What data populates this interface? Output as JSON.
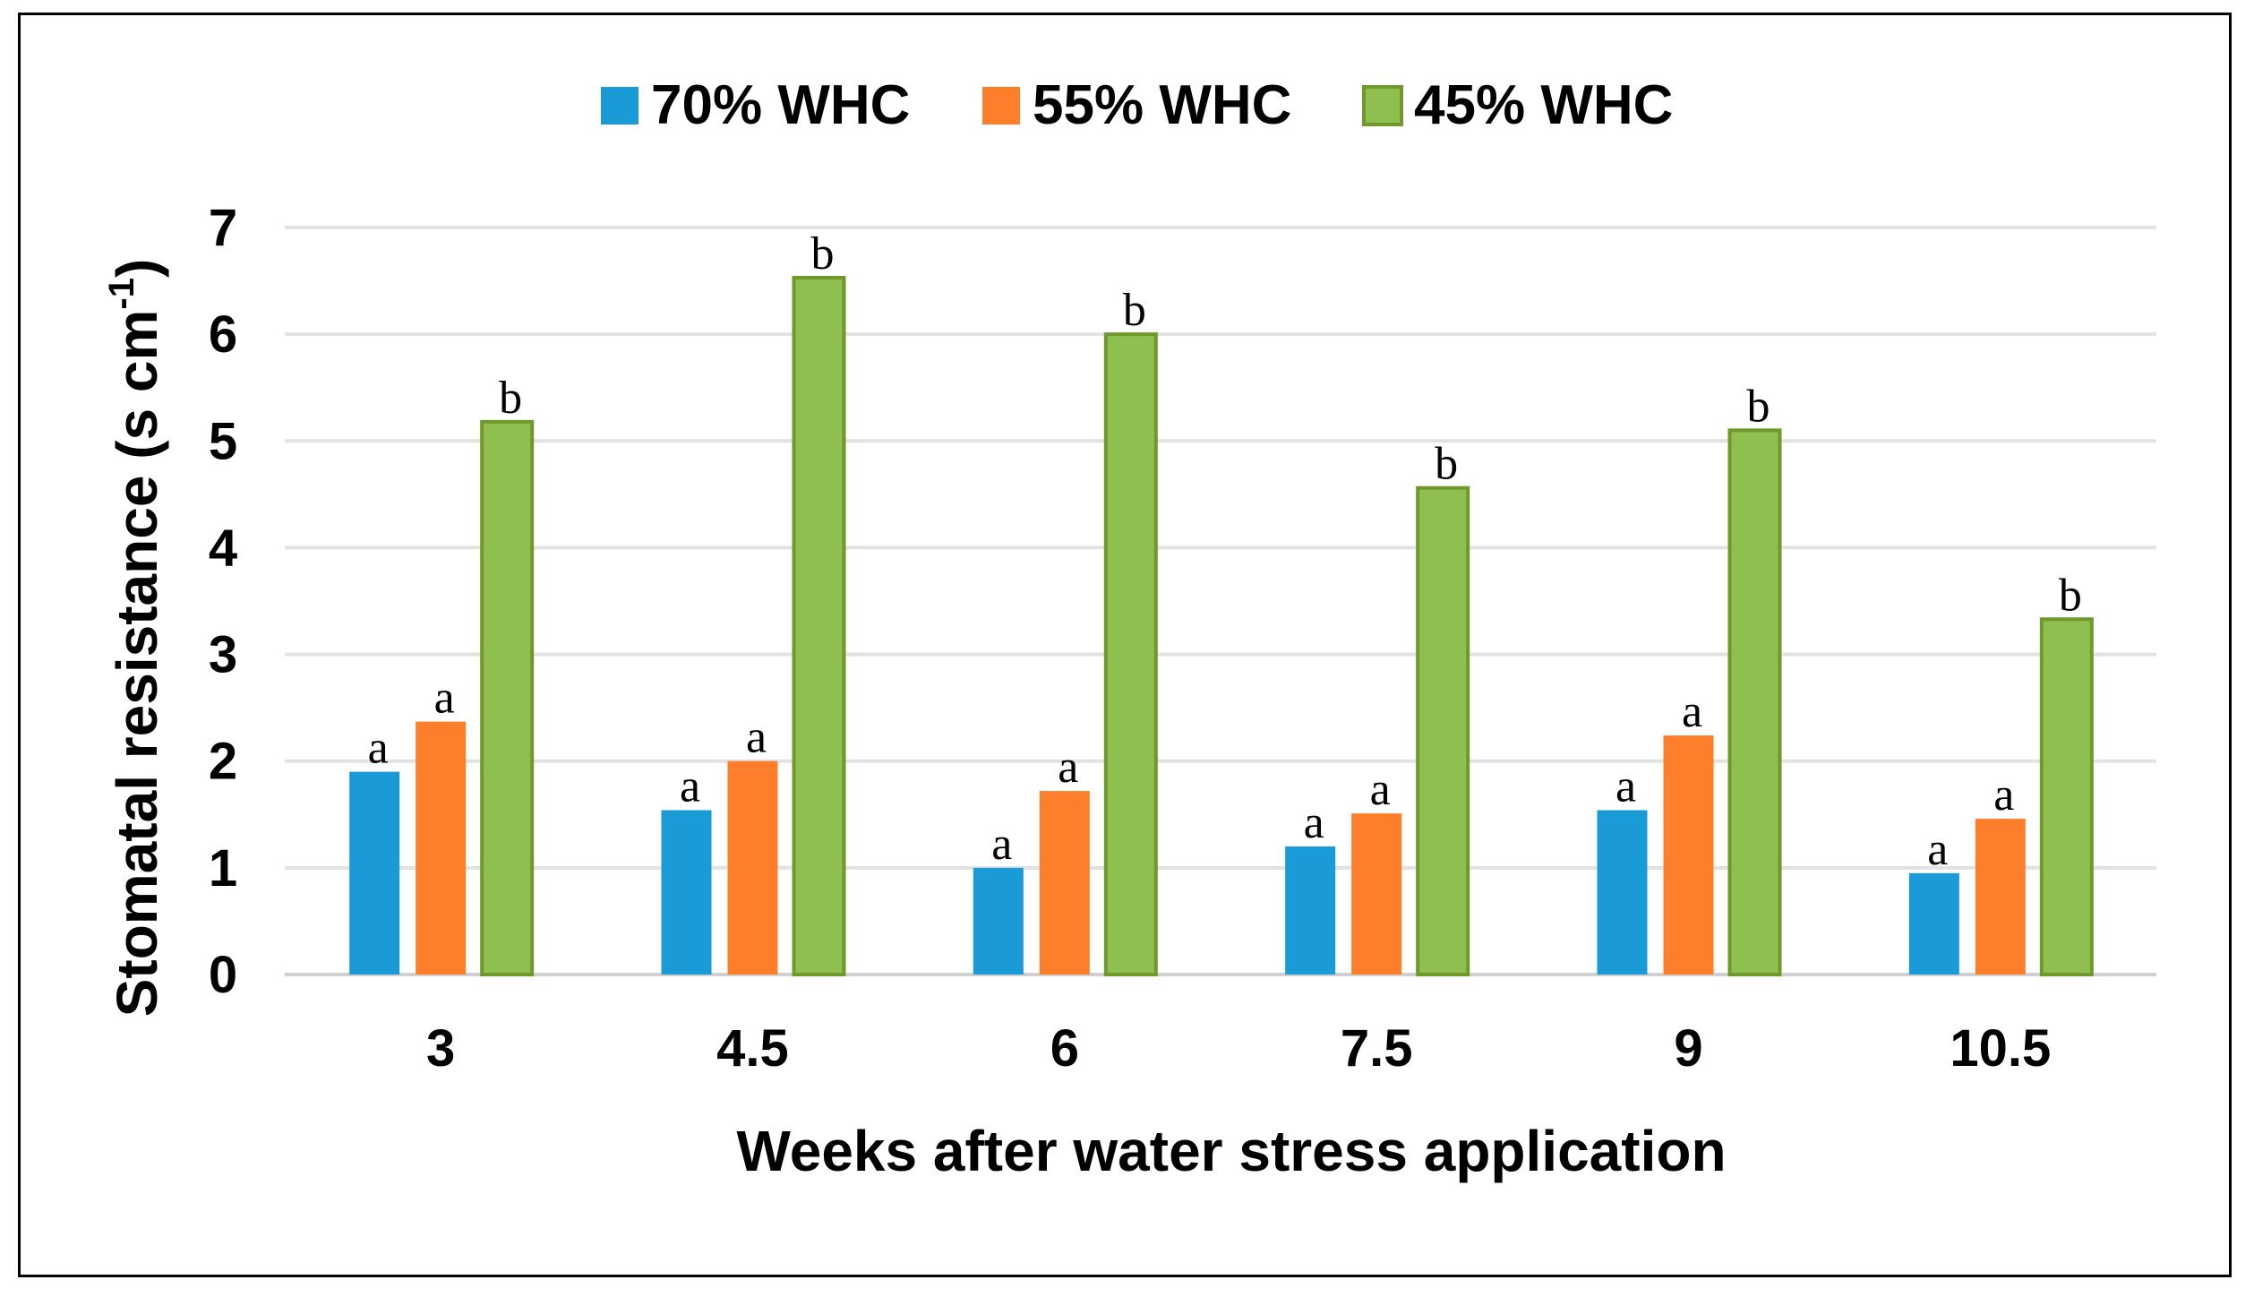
{
  "chart_data": {
    "type": "bar",
    "title": "",
    "xlabel": "Weeks after water stress application",
    "ylabel": "Stomatal resistance (s cm",
    "ylabel_sup": "-1",
    "ylabel_close": ")",
    "ylim": [
      0,
      7
    ],
    "yticks": [
      "0",
      "1",
      "2",
      "3",
      "4",
      "5",
      "6",
      "7"
    ],
    "grid": true,
    "legend_position": "top-center",
    "categories": [
      "3",
      "4.5",
      "6",
      "7.5",
      "9",
      "10.5"
    ],
    "series": [
      {
        "name": "70% WHC",
        "color": "#1a9ad6",
        "values": [
          1.9,
          1.54,
          1.0,
          1.2,
          1.54,
          0.95
        ],
        "labels": [
          "a",
          "a",
          "a",
          "a",
          "a",
          "a"
        ]
      },
      {
        "name": "55% WHC",
        "color": "#fd7f2c",
        "values": [
          2.37,
          2.0,
          1.72,
          1.51,
          2.24,
          1.46
        ],
        "labels": [
          "a",
          "a",
          "a",
          "a",
          "a",
          "a"
        ]
      },
      {
        "name": "45% WHC",
        "color": "#8fbf50",
        "stroke": "#6f9a2a",
        "values": [
          5.18,
          6.53,
          6.0,
          4.56,
          5.1,
          3.33
        ],
        "labels": [
          "b",
          "b",
          "b",
          "b",
          "b",
          "b"
        ]
      }
    ]
  }
}
